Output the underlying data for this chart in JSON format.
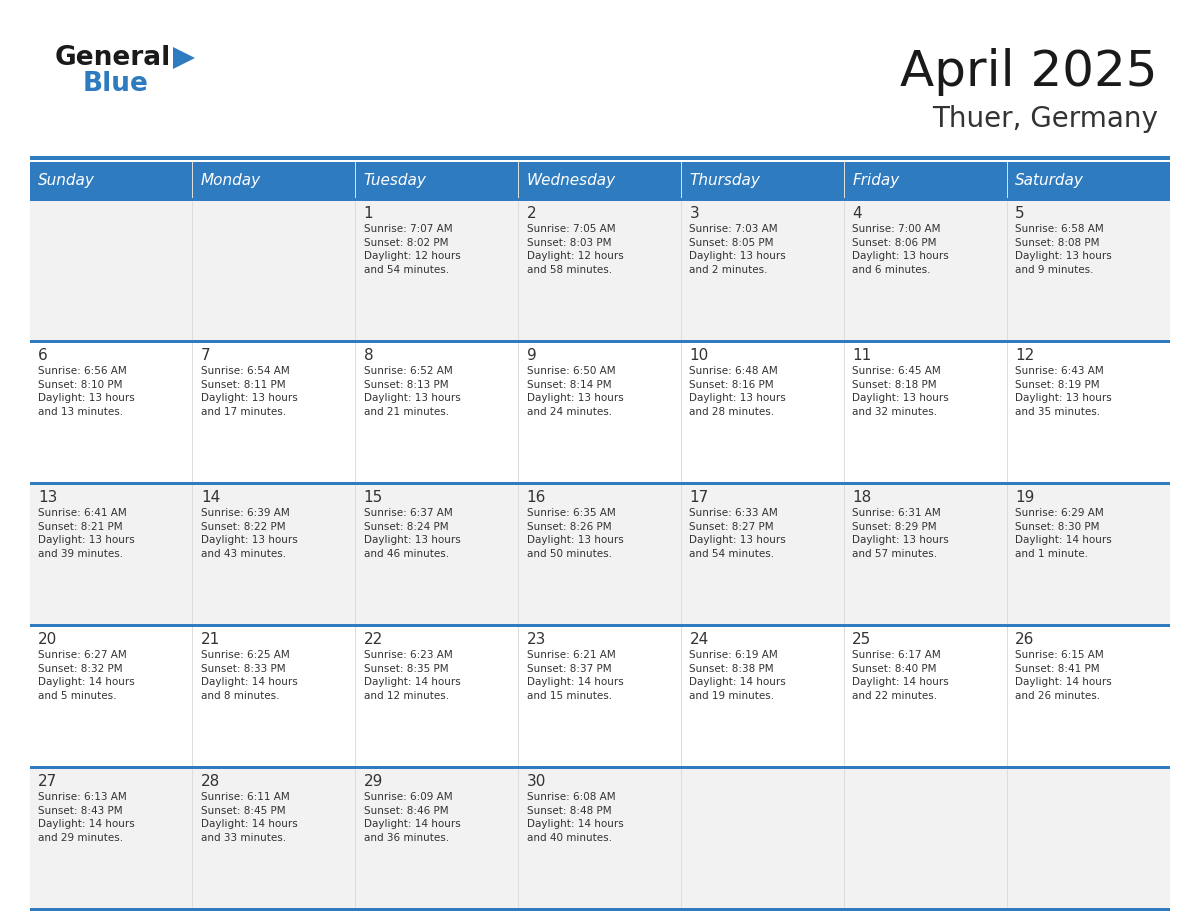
{
  "title": "April 2025",
  "subtitle": "Thuer, Germany",
  "header_bg": "#2E7BBF",
  "header_text_color": "#FFFFFF",
  "days_of_week": [
    "Sunday",
    "Monday",
    "Tuesday",
    "Wednesday",
    "Thursday",
    "Friday",
    "Saturday"
  ],
  "row_bg_odd": "#F2F2F2",
  "row_bg_even": "#FFFFFF",
  "cell_border_color": "#2E7BBF",
  "text_color": "#333333",
  "logo_general_color": "#1a1a1a",
  "logo_blue_color": "#2E7BBF",
  "logo_triangle_color": "#2E7BBF",
  "calendar_data": [
    [
      {
        "day": "",
        "info": ""
      },
      {
        "day": "",
        "info": ""
      },
      {
        "day": "1",
        "info": "Sunrise: 7:07 AM\nSunset: 8:02 PM\nDaylight: 12 hours\nand 54 minutes."
      },
      {
        "day": "2",
        "info": "Sunrise: 7:05 AM\nSunset: 8:03 PM\nDaylight: 12 hours\nand 58 minutes."
      },
      {
        "day": "3",
        "info": "Sunrise: 7:03 AM\nSunset: 8:05 PM\nDaylight: 13 hours\nand 2 minutes."
      },
      {
        "day": "4",
        "info": "Sunrise: 7:00 AM\nSunset: 8:06 PM\nDaylight: 13 hours\nand 6 minutes."
      },
      {
        "day": "5",
        "info": "Sunrise: 6:58 AM\nSunset: 8:08 PM\nDaylight: 13 hours\nand 9 minutes."
      }
    ],
    [
      {
        "day": "6",
        "info": "Sunrise: 6:56 AM\nSunset: 8:10 PM\nDaylight: 13 hours\nand 13 minutes."
      },
      {
        "day": "7",
        "info": "Sunrise: 6:54 AM\nSunset: 8:11 PM\nDaylight: 13 hours\nand 17 minutes."
      },
      {
        "day": "8",
        "info": "Sunrise: 6:52 AM\nSunset: 8:13 PM\nDaylight: 13 hours\nand 21 minutes."
      },
      {
        "day": "9",
        "info": "Sunrise: 6:50 AM\nSunset: 8:14 PM\nDaylight: 13 hours\nand 24 minutes."
      },
      {
        "day": "10",
        "info": "Sunrise: 6:48 AM\nSunset: 8:16 PM\nDaylight: 13 hours\nand 28 minutes."
      },
      {
        "day": "11",
        "info": "Sunrise: 6:45 AM\nSunset: 8:18 PM\nDaylight: 13 hours\nand 32 minutes."
      },
      {
        "day": "12",
        "info": "Sunrise: 6:43 AM\nSunset: 8:19 PM\nDaylight: 13 hours\nand 35 minutes."
      }
    ],
    [
      {
        "day": "13",
        "info": "Sunrise: 6:41 AM\nSunset: 8:21 PM\nDaylight: 13 hours\nand 39 minutes."
      },
      {
        "day": "14",
        "info": "Sunrise: 6:39 AM\nSunset: 8:22 PM\nDaylight: 13 hours\nand 43 minutes."
      },
      {
        "day": "15",
        "info": "Sunrise: 6:37 AM\nSunset: 8:24 PM\nDaylight: 13 hours\nand 46 minutes."
      },
      {
        "day": "16",
        "info": "Sunrise: 6:35 AM\nSunset: 8:26 PM\nDaylight: 13 hours\nand 50 minutes."
      },
      {
        "day": "17",
        "info": "Sunrise: 6:33 AM\nSunset: 8:27 PM\nDaylight: 13 hours\nand 54 minutes."
      },
      {
        "day": "18",
        "info": "Sunrise: 6:31 AM\nSunset: 8:29 PM\nDaylight: 13 hours\nand 57 minutes."
      },
      {
        "day": "19",
        "info": "Sunrise: 6:29 AM\nSunset: 8:30 PM\nDaylight: 14 hours\nand 1 minute."
      }
    ],
    [
      {
        "day": "20",
        "info": "Sunrise: 6:27 AM\nSunset: 8:32 PM\nDaylight: 14 hours\nand 5 minutes."
      },
      {
        "day": "21",
        "info": "Sunrise: 6:25 AM\nSunset: 8:33 PM\nDaylight: 14 hours\nand 8 minutes."
      },
      {
        "day": "22",
        "info": "Sunrise: 6:23 AM\nSunset: 8:35 PM\nDaylight: 14 hours\nand 12 minutes."
      },
      {
        "day": "23",
        "info": "Sunrise: 6:21 AM\nSunset: 8:37 PM\nDaylight: 14 hours\nand 15 minutes."
      },
      {
        "day": "24",
        "info": "Sunrise: 6:19 AM\nSunset: 8:38 PM\nDaylight: 14 hours\nand 19 minutes."
      },
      {
        "day": "25",
        "info": "Sunrise: 6:17 AM\nSunset: 8:40 PM\nDaylight: 14 hours\nand 22 minutes."
      },
      {
        "day": "26",
        "info": "Sunrise: 6:15 AM\nSunset: 8:41 PM\nDaylight: 14 hours\nand 26 minutes."
      }
    ],
    [
      {
        "day": "27",
        "info": "Sunrise: 6:13 AM\nSunset: 8:43 PM\nDaylight: 14 hours\nand 29 minutes."
      },
      {
        "day": "28",
        "info": "Sunrise: 6:11 AM\nSunset: 8:45 PM\nDaylight: 14 hours\nand 33 minutes."
      },
      {
        "day": "29",
        "info": "Sunrise: 6:09 AM\nSunset: 8:46 PM\nDaylight: 14 hours\nand 36 minutes."
      },
      {
        "day": "30",
        "info": "Sunrise: 6:08 AM\nSunset: 8:48 PM\nDaylight: 14 hours\nand 40 minutes."
      },
      {
        "day": "",
        "info": ""
      },
      {
        "day": "",
        "info": ""
      },
      {
        "day": "",
        "info": ""
      }
    ]
  ]
}
